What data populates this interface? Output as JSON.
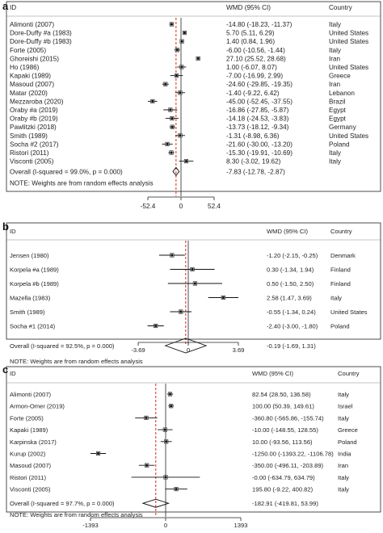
{
  "chart_data": [
    {
      "type": "forest",
      "panel_label": "a",
      "headers": {
        "id": "ID",
        "effect": "WMD (95% CI)",
        "country": "Country"
      },
      "xlim": [
        -52.4,
        52.4
      ],
      "ticks": [
        -52.4,
        0,
        52.4
      ],
      "tick_labels": [
        "-52.4",
        "0",
        "52.4"
      ],
      "studies": [
        {
          "id": "Alimonti (2007)",
          "est": -14.8,
          "lo": -18.23,
          "hi": -11.37,
          "label": "-14.80 (-18.23, -11.37)",
          "country": "Italy"
        },
        {
          "id": "Dore-Duffy #a (1983)",
          "est": 5.7,
          "lo": 5.11,
          "hi": 6.29,
          "label": "5.70 (5.11, 6.29)",
          "country": "United States"
        },
        {
          "id": "Dore-Duffy #b (1983)",
          "est": 1.4,
          "lo": 0.84,
          "hi": 1.96,
          "label": "1.40 (0.84, 1.96)",
          "country": "United States"
        },
        {
          "id": "Forte (2005)",
          "est": -6.0,
          "lo": -10.56,
          "hi": -1.44,
          "label": "-6.00 (-10.56, -1.44)",
          "country": "Italy"
        },
        {
          "id": "Ghoreishi (2015)",
          "est": 27.1,
          "lo": 25.52,
          "hi": 28.68,
          "label": "27.10 (25.52, 28.68)",
          "country": "Iran"
        },
        {
          "id": "Ho (1986)",
          "est": 1.0,
          "lo": -6.07,
          "hi": 8.07,
          "label": "1.00 (-6.07, 8.07)",
          "country": "United States"
        },
        {
          "id": "Kapaki (1989)",
          "est": -7.0,
          "lo": -16.99,
          "hi": 2.99,
          "label": "-7.00 (-16.99, 2.99)",
          "country": "Greece"
        },
        {
          "id": "Masoud (2007)",
          "est": -24.6,
          "lo": -29.85,
          "hi": -19.35,
          "label": "-24.60 (-29.85, -19.35)",
          "country": "Iran"
        },
        {
          "id": "Matar (2020)",
          "est": -1.4,
          "lo": -9.22,
          "hi": 6.42,
          "label": "-1.40 (-9.22, 6.42)",
          "country": "Lebanon"
        },
        {
          "id": "Mezzaroba (2020)",
          "est": -45.0,
          "lo": -52.45,
          "hi": -37.55,
          "label": "-45.00 (-52.45, -37.55)",
          "country": "Brazil"
        },
        {
          "id": "Oraby #a (2019)",
          "est": -16.86,
          "lo": -27.85,
          "hi": -5.87,
          "label": "-16.86 (-27.85, -5.87)",
          "country": "Egypt"
        },
        {
          "id": "Oraby #b (2019)",
          "est": -14.18,
          "lo": -24.53,
          "hi": -3.83,
          "label": "-14.18 (-24.53, -3.83)",
          "country": "Egypt"
        },
        {
          "id": "Pawlitzki (2018)",
          "est": -13.73,
          "lo": -18.12,
          "hi": -9.34,
          "label": "-13.73 (-18.12, -9.34)",
          "country": "Germany"
        },
        {
          "id": "Smith (1989)",
          "est": -1.31,
          "lo": -8.98,
          "hi": 6.36,
          "label": "-1.31 (-8.98, 6.36)",
          "country": "United States"
        },
        {
          "id": "Socha #2 (2017)",
          "est": -21.6,
          "lo": -30.0,
          "hi": -13.2,
          "label": "-21.60 (-30.00, -13.20)",
          "country": "Poland"
        },
        {
          "id": "Ristori (2011)",
          "est": -15.3,
          "lo": -19.91,
          "hi": -10.69,
          "label": "-15.30 (-19.91, -10.69)",
          "country": "Italy"
        },
        {
          "id": "Visconti (2005)",
          "est": 8.3,
          "lo": -3.02,
          "hi": 19.62,
          "label": "8.30 (-3.02, 19.62)",
          "country": "Italy"
        }
      ],
      "overall": {
        "id": "Overall  (I-squared = 99.0%, p = 0.000)",
        "est": -7.83,
        "lo": -12.78,
        "hi": -2.87,
        "label": "-7.83 (-12.78, -2.87)"
      },
      "note": "NOTE: Weights are from random effects analysis"
    },
    {
      "type": "forest",
      "panel_label": "b",
      "headers": {
        "id": "ID",
        "effect": "WMD (95% CI)",
        "country": "Country"
      },
      "xlim": [
        -3.69,
        3.69
      ],
      "ticks": [
        -3.69,
        0,
        3.69
      ],
      "tick_labels": [
        "-3.69",
        "0",
        "3.69"
      ],
      "studies": [
        {
          "id": "Jensen (1980)",
          "est": -1.2,
          "lo": -2.15,
          "hi": -0.25,
          "label": "-1.20 (-2.15, -0.25)",
          "country": "Denmark"
        },
        {
          "id": "Korpela #a (1989)",
          "est": 0.3,
          "lo": -1.34,
          "hi": 1.94,
          "label": "0.30 (-1.34, 1.94)",
          "country": "Finland"
        },
        {
          "id": "Korpela #b (1989)",
          "est": 0.5,
          "lo": -1.5,
          "hi": 2.5,
          "label": "0.50 (-1.50, 2.50)",
          "country": "Finland"
        },
        {
          "id": "Mazella (1983)",
          "est": 2.58,
          "lo": 1.47,
          "hi": 3.69,
          "label": "2.58 (1.47, 3.69)",
          "country": "Italy"
        },
        {
          "id": "Smith (1989)",
          "est": -0.55,
          "lo": -1.34,
          "hi": 0.24,
          "label": "-0.55 (-1.34, 0.24)",
          "country": "United States"
        },
        {
          "id": "Socha #1 (2014)",
          "est": -2.4,
          "lo": -3.0,
          "hi": -1.8,
          "label": "-2.40 (-3.00, -1.80)",
          "country": "Poland"
        }
      ],
      "overall": {
        "id": "Overall  (I-squared = 92.5%, p = 0.000)",
        "est": -0.19,
        "lo": -1.69,
        "hi": 1.31,
        "label": "-0.19 (-1.69, 1.31)"
      },
      "note": "NOTE: Weights are from random effects analysis"
    },
    {
      "type": "forest",
      "panel_label": "c",
      "headers": {
        "id": "ID",
        "effect": "WMD (95% CI)",
        "country": "Country"
      },
      "xlim": [
        -1393,
        1393
      ],
      "ticks": [
        -1393,
        0,
        1393
      ],
      "tick_labels": [
        "-1393",
        "0",
        "1393"
      ],
      "studies": [
        {
          "id": "Alimonti (2007)",
          "est": 82.54,
          "lo": 28.5,
          "hi": 136.58,
          "label": "82.54 (28.50, 136.58)",
          "country": "Italy"
        },
        {
          "id": "Armon-Omer (2019)",
          "est": 100.0,
          "lo": 50.39,
          "hi": 149.61,
          "label": "100.00 (50.39, 149.61)",
          "country": "Israel"
        },
        {
          "id": "Forte (2005)",
          "est": -360.8,
          "lo": -565.86,
          "hi": -155.74,
          "label": "-360.80 (-565.86, -155.74)",
          "country": "Italy"
        },
        {
          "id": "Kapaki (1989)",
          "est": -10.0,
          "lo": -148.55,
          "hi": 128.55,
          "label": "-10.00 (-148.55, 128.55)",
          "country": "Greece"
        },
        {
          "id": "Karpinska (2017)",
          "est": 10.0,
          "lo": -93.56,
          "hi": 113.56,
          "label": "10.00 (-93.56, 113.56)",
          "country": "Poland"
        },
        {
          "id": "Kurup (2002)",
          "est": -1250.0,
          "lo": -1393.22,
          "hi": -1106.78,
          "label": "-1250.00 (-1393.22, -1106.78)",
          "country": "India"
        },
        {
          "id": "Masoud (2007)",
          "est": -350.0,
          "lo": -496.11,
          "hi": -203.89,
          "label": "-350.00 (-496.11, -203.89)",
          "country": "Iran"
        },
        {
          "id": "Ristori (2011)",
          "est": -0.0,
          "lo": -634.79,
          "hi": 634.79,
          "label": "-0.00 (-634.79, 634.79)",
          "country": "Italy"
        },
        {
          "id": "Visconti (2005)",
          "est": 195.8,
          "lo": -9.22,
          "hi": 400.82,
          "label": "195.80 (-9.22, 400.82)",
          "country": "Italy"
        }
      ],
      "overall": {
        "id": "Overall  (I-squared = 97.7%, p = 0.000)",
        "est": -182.91,
        "lo": -419.81,
        "hi": 53.99,
        "label": "-182.91 (-419.81, 53.99)"
      },
      "note": "NOTE: Weights are from random effects analysis"
    }
  ],
  "colors": {
    "null_line": "#222222",
    "overall_line": "#d62a1e",
    "marker": "#111111",
    "frame": "#222222"
  }
}
